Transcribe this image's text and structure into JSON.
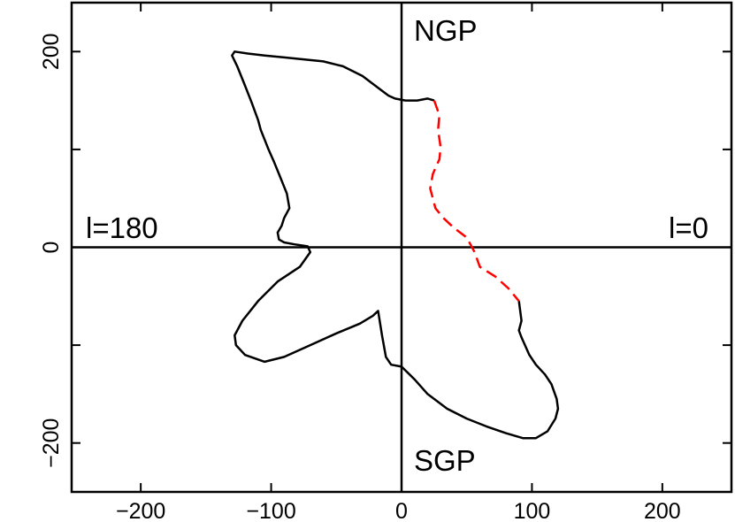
{
  "chart_data": {
    "type": "line",
    "title": "",
    "xlabel": "",
    "ylabel": "",
    "xlim": [
      -253,
      253
    ],
    "ylim": [
      -250,
      250
    ],
    "xticks": [
      -200,
      -100,
      0,
      100,
      200
    ],
    "yticks": [
      -200,
      0,
      200
    ],
    "x_tick_labels": [
      "−200",
      "−100",
      "0",
      "100",
      "200"
    ],
    "y_tick_labels": [
      "−200",
      "0",
      "200"
    ],
    "grid": false,
    "annotations": {
      "top": "NGP",
      "bottom": "SGP",
      "left": "l=180",
      "right": "l=0"
    },
    "colors": {
      "solid": "#000000",
      "dashed": "#ff0000"
    },
    "series": [
      {
        "style": "solid",
        "color": "#000000",
        "x": [
          25,
          20,
          12,
          3,
          -5,
          -10,
          -20,
          -30,
          -45,
          -60,
          -75,
          -90,
          -105,
          -118,
          -128,
          -130,
          -126,
          -120,
          -115,
          -110,
          -108,
          -105,
          -102,
          -98,
          -94,
          -88,
          -86,
          -90,
          -92,
          -95,
          -94,
          -90,
          -82,
          -72,
          -70,
          -78,
          -95,
          -110,
          -122,
          -128,
          -127,
          -120,
          -105,
          -90,
          -70,
          -50,
          -32,
          -22,
          -18,
          -15,
          -12,
          -8,
          0,
          10,
          20,
          35,
          50,
          65,
          80,
          93,
          103,
          112,
          118,
          120,
          119,
          115,
          110,
          103,
          98,
          92,
          90,
          92,
          90
        ],
        "y": [
          150,
          152,
          150,
          150,
          152,
          155,
          165,
          175,
          185,
          190,
          192,
          194,
          196,
          198,
          200,
          196,
          185,
          165,
          148,
          130,
          120,
          110,
          100,
          88,
          75,
          55,
          40,
          30,
          22,
          15,
          8,
          5,
          3,
          1,
          -5,
          -20,
          -35,
          -55,
          -75,
          -90,
          -100,
          -110,
          -117,
          -112,
          -100,
          -88,
          -78,
          -70,
          -65,
          -90,
          -112,
          -120,
          -122,
          -135,
          -150,
          -165,
          -175,
          -183,
          -190,
          -195,
          -195,
          -188,
          -175,
          -165,
          -155,
          -140,
          -130,
          -120,
          -110,
          -92,
          -85,
          -75,
          -55
        ]
      },
      {
        "style": "dashed",
        "color": "#ff0000",
        "x": [
          25,
          29,
          28,
          30,
          29,
          24,
          22,
          26,
          32,
          40,
          50,
          56,
          60,
          72,
          82,
          90
        ],
        "y": [
          150,
          135,
          120,
          102,
          90,
          75,
          60,
          40,
          30,
          20,
          10,
          -5,
          -20,
          -30,
          -42,
          -55
        ]
      }
    ]
  }
}
